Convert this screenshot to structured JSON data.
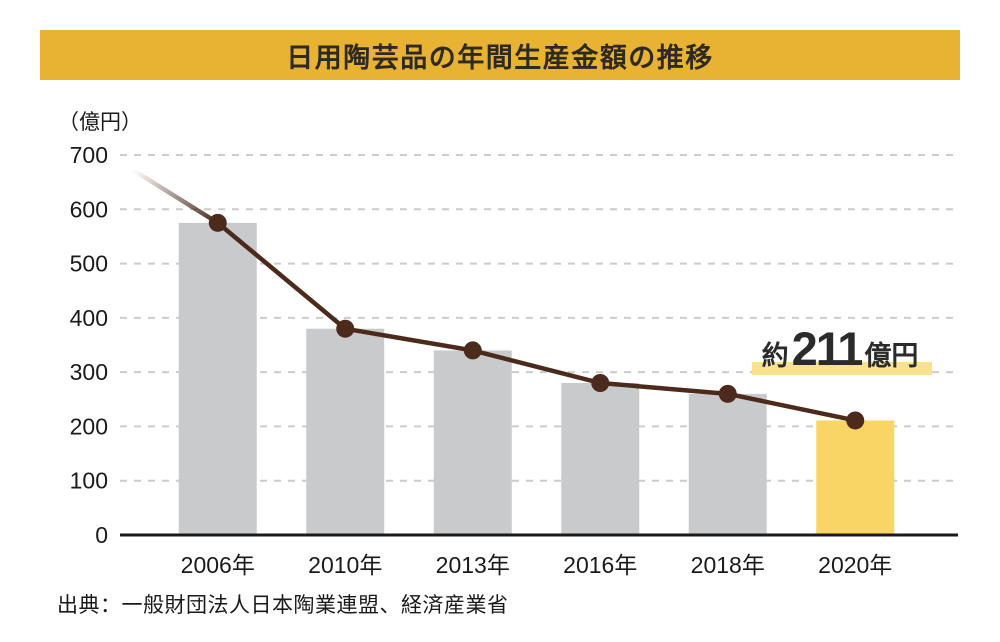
{
  "title": "日用陶芸品の年間生産金額の推移",
  "y_axis_unit_label": "（億円）",
  "annotation": {
    "prefix": "約",
    "value": "211",
    "unit": "億円",
    "full_text": "約211億円"
  },
  "source": "出典：一般財団法人日本陶業連盟、経済産業省",
  "colors": {
    "header_band": "#E8B232",
    "bar_default": "#C9CACB",
    "bar_highlight": "#F9D566",
    "line": "#4C2A1C",
    "gridline": "#CCCCCC",
    "axis": "#1A1A1A",
    "annotation_highlight": "#F8E38C"
  },
  "chart_data": {
    "type": "bar",
    "overlay": "line",
    "title": "日用陶芸品の年間生産金額の推移",
    "categories": [
      "2006年",
      "2010年",
      "2013年",
      "2016年",
      "2018年",
      "2020年"
    ],
    "values": [
      575,
      380,
      340,
      280,
      260,
      211
    ],
    "xlabel": "",
    "ylabel": "（億円）",
    "ylim": [
      0,
      700
    ],
    "ytick_step": 100,
    "yticks": [
      0,
      100,
      200,
      300,
      400,
      500,
      600,
      700
    ],
    "grid": "dashed-horizontal",
    "legend": "none",
    "highlight_category": "2020年",
    "annotation": "約211億円"
  }
}
